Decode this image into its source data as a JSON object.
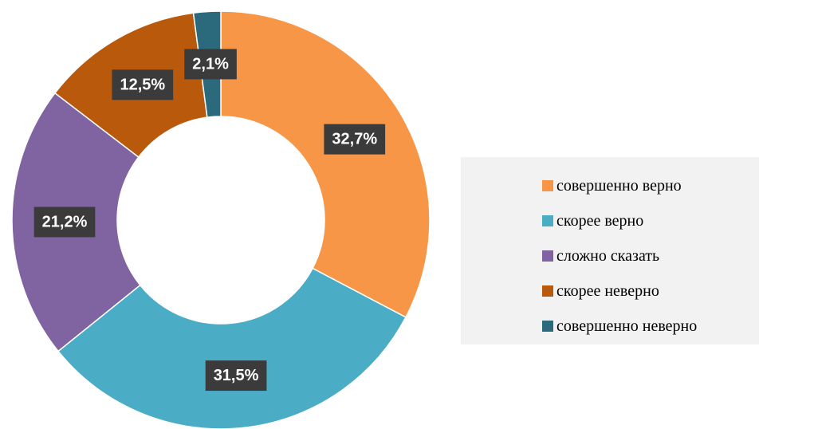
{
  "chart_data": {
    "type": "donut",
    "categories": [
      "совершенно верно",
      "скорее верно",
      "сложно сказать",
      "скорее неверно",
      "совершенно неверно"
    ],
    "values": [
      32.7,
      31.5,
      21.2,
      12.5,
      2.1
    ],
    "value_labels": [
      "32,7%",
      "31,5%",
      "21,2%",
      "12,5%",
      "2,1%"
    ],
    "colors": [
      "#f79646",
      "#4bacc6",
      "#8064a2",
      "#b9590c",
      "#2b6a7c"
    ],
    "legend": "right"
  }
}
